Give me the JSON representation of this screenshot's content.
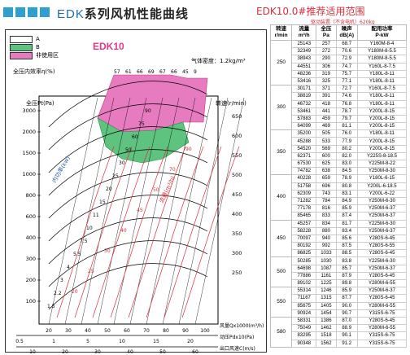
{
  "header": {
    "title_latin": "EDK",
    "title_cn": "系列风机性能曲线",
    "table_title": "EDK10.0#推荐适用范围",
    "table_note": "驱动装置（不含电机）620kg"
  },
  "chart": {
    "model": "EDK10",
    "air_density": "气体密度：1.2kg/m³",
    "legend": [
      {
        "label": "A",
        "color": "#ffffff"
      },
      {
        "label": "B",
        "color": "#5ec37e"
      },
      {
        "label": "非使用区",
        "color": "#e77bc0"
      }
    ],
    "left_axis_title": "全压Pt(Pa)",
    "right_axis_title": "转速(r/min)",
    "efficiency_title": "全压内效率η(%)",
    "efficiency_ticks": [
      "57",
      "61",
      "66",
      "69",
      "67",
      "66",
      "45",
      "9"
    ],
    "internal_power_label": "内功率(kw)",
    "flow_label": "流量(m³/h)",
    "left_ticks": [
      "3000",
      "2000",
      "1500",
      "1000",
      "800",
      "600",
      "400",
      "300",
      "200",
      "100"
    ],
    "right_ticks": [
      "650",
      "600",
      "550",
      "500",
      "450",
      "400",
      "350",
      "300",
      "250"
    ],
    "power_ticks": [
      "90",
      "75",
      "60",
      "50",
      "30",
      "25",
      "20",
      "15",
      "11",
      "10",
      "7.5",
      "5.5",
      "4",
      "3",
      "2.2",
      "1.5"
    ],
    "flow_curve_labels": [
      "90",
      "70",
      "50",
      "45",
      "40",
      "30",
      "25",
      "20"
    ],
    "bottom_flow_title": "风量Qx1000(m³/h)",
    "bottom_flow_ticks": [
      "20",
      "30",
      "40",
      "50",
      "60",
      "70",
      "80",
      "90",
      "100"
    ],
    "bottom_pd_title": "动压Pdx10(Pa)",
    "bottom_pd_ticks": [
      "0.5",
      "1",
      "5",
      "10",
      "15",
      "20"
    ],
    "bottom_vel_title": "出口风速C(m/s)",
    "bottom_vel_ticks": [
      "10",
      "20",
      "30",
      "40",
      "50",
      "60"
    ]
  },
  "table": {
    "columns": [
      "转速\nr/min",
      "流量\nm³/h",
      "全压\nPa",
      "噪声\ndB(A)",
      "配用功率\nP-kW"
    ],
    "groups": [
      {
        "speed": "250",
        "rows": [
          [
            "25143",
            "257",
            "68.7",
            "Y160M-8-4"
          ],
          [
            "32349",
            "272",
            "70.6",
            "Y180M-8-5.5"
          ],
          [
            "38943",
            "290",
            "72.9",
            "Y180M-8-5.5"
          ],
          [
            "44551",
            "306",
            "74.7",
            "Y160L-8-7.5"
          ],
          [
            "48236",
            "319",
            "75.7",
            "Y180L-8-11"
          ],
          [
            "53416",
            "325",
            "77.1",
            "Y180L-8-11"
          ]
        ]
      },
      {
        "speed": "300",
        "rows": [
          [
            "30171",
            "371",
            "72.7",
            "Y160L-8-7.5"
          ],
          [
            "38819",
            "391",
            "74.6",
            "Y180L-8-11"
          ],
          [
            "46732",
            "418",
            "76.8",
            "Y180L-8-11"
          ],
          [
            "53461",
            "441",
            "78.7",
            "Y200L-8-15"
          ],
          [
            "57883",
            "459",
            "79.7",
            "Y200L-8-15"
          ],
          [
            "64099",
            "469",
            "81.1",
            "Y200L-8-15"
          ]
        ]
      },
      {
        "speed": "350",
        "rows": [
          [
            "35200",
            "505",
            "76.0",
            "Y180L-8-11"
          ],
          [
            "45288",
            "533",
            "77.9",
            "Y200L-8-15"
          ],
          [
            "54520",
            "569",
            "80.2",
            "Y200L-8-15"
          ],
          [
            "62371",
            "600",
            "82.0",
            "Y225S-8-18.5"
          ],
          [
            "67530",
            "625",
            "83.0",
            "Y225M-8-22"
          ],
          [
            "74782",
            "638",
            "84.5",
            "Y250M-8-30"
          ]
        ]
      },
      {
        "speed": "400",
        "rows": [
          [
            "40228",
            "659",
            "78.9",
            "Y180L-6-15"
          ],
          [
            "51758",
            "696",
            "80.8",
            "Y200L-6-18.5"
          ],
          [
            "62309",
            "743",
            "83.1",
            "Y200L-6-22"
          ],
          [
            "71282",
            "784",
            "84.9",
            "Y250M-6-30"
          ],
          [
            "77178",
            "816",
            "85.9",
            "Y250M-6-37"
          ],
          [
            "85465",
            "833",
            "87.4",
            "Y250M-6-37"
          ]
        ]
      },
      {
        "speed": "450",
        "rows": [
          [
            "45257",
            "834",
            "81.7",
            "Y225M-6-30"
          ],
          [
            "58228",
            "880",
            "83.4",
            "Y250M-6-37"
          ],
          [
            "70097",
            "940",
            "85.6",
            "Y280S-6-45"
          ],
          [
            "80192",
            "992",
            "87.5",
            "Y280S-6-55"
          ],
          [
            "86825",
            "1033",
            "88.5",
            "Y280S-6-45"
          ]
        ]
      },
      {
        "speed": "500",
        "rows": [
          [
            "50285",
            "1030",
            "83.8",
            "Y225M-6-30"
          ],
          [
            "64698",
            "1087",
            "85.7",
            "Y250M-6-37"
          ],
          [
            "77886",
            "1161",
            "87.9",
            "Y280S-6-45"
          ],
          [
            "89102",
            "1225",
            "89.8",
            "Y280M-6-55"
          ]
        ]
      },
      {
        "speed": "550",
        "rows": [
          [
            "55314",
            "1246",
            "85.9",
            "Y250M-6-37"
          ],
          [
            "71167",
            "1315",
            "87.7",
            "Y280S-6-45"
          ],
          [
            "85675",
            "1405",
            "90.0",
            "Y280M-6-55"
          ],
          [
            "90924",
            "1454",
            "90.7",
            "Y315S-6-75"
          ]
        ]
      },
      {
        "speed": "580",
        "rows": [
          [
            "58331",
            "1386",
            "87.0",
            "Y280S-6-45"
          ],
          [
            "75049",
            "1462",
            "88.9",
            "Y280M-6-55"
          ],
          [
            "83295",
            "1518",
            "90.1",
            "Y315S-6-75"
          ],
          [
            "90348",
            "1562",
            "91.2",
            "Y315S-6-75"
          ]
        ]
      }
    ]
  }
}
